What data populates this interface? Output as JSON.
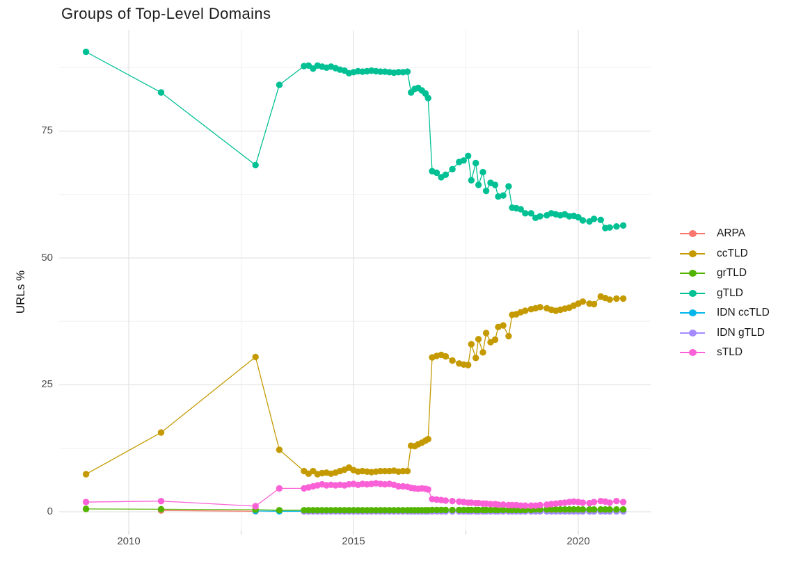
{
  "title": "Groups of Top-Level Domains",
  "chart_data": {
    "type": "scatter",
    "title": "Groups of Top-Level Domains",
    "xlabel": "",
    "ylabel": "URLs %",
    "legend_position": "right",
    "grid": true,
    "xlim": [
      2008.45,
      2021.6
    ],
    "ylim": [
      0,
      95
    ],
    "x_ticks": [
      2010,
      2015,
      2020
    ],
    "x_tick_labels": [
      "2010",
      "2015",
      "2020"
    ],
    "x_minor": [
      2012.5,
      2017.5
    ],
    "y_ticks": [
      0,
      25,
      50,
      75
    ],
    "y_tick_labels": [
      "0",
      "25",
      "50",
      "75"
    ],
    "y_minor": [
      12.5,
      37.5,
      62.5,
      87.5
    ],
    "x": [
      2009.05,
      2010.72,
      2012.82,
      2013.35,
      2013.9,
      2014.0,
      2014.1,
      2014.2,
      2014.3,
      2014.4,
      2014.5,
      2014.6,
      2014.7,
      2014.8,
      2014.9,
      2015.0,
      2015.1,
      2015.2,
      2015.3,
      2015.4,
      2015.5,
      2015.6,
      2015.7,
      2015.8,
      2015.9,
      2016.0,
      2016.1,
      2016.2,
      2016.28,
      2016.36,
      2016.44,
      2016.52,
      2016.6,
      2016.66,
      2016.75,
      2016.85,
      2016.95,
      2017.05,
      2017.2,
      2017.35,
      2017.45,
      2017.55,
      2017.62,
      2017.72,
      2017.78,
      2017.88,
      2017.95,
      2018.05,
      2018.15,
      2018.22,
      2018.33,
      2018.45,
      2018.53,
      2018.62,
      2018.72,
      2018.82,
      2018.95,
      2019.05,
      2019.15,
      2019.3,
      2019.4,
      2019.5,
      2019.6,
      2019.7,
      2019.8,
      2019.9,
      2020.0,
      2020.1,
      2020.25,
      2020.35,
      2020.5,
      2020.6,
      2020.7,
      2020.85,
      2021.0
    ],
    "series": [
      {
        "name": "ARPA",
        "color": "#F8766D",
        "values": [
          null,
          0.25,
          0.1,
          null,
          null,
          null,
          null,
          null,
          null,
          null,
          null,
          null,
          null,
          null,
          null,
          null,
          null,
          null,
          null,
          null,
          null,
          null,
          null,
          null,
          null,
          null,
          null,
          null,
          null,
          null,
          null,
          null,
          null,
          null,
          null,
          null,
          null,
          null,
          null,
          null,
          null,
          null,
          null,
          null,
          null,
          null,
          null,
          null,
          null,
          null,
          null,
          null,
          null,
          null,
          null,
          null,
          null,
          null,
          null,
          null,
          null,
          null,
          null,
          null,
          null,
          null,
          null,
          null,
          null,
          null,
          null,
          null,
          null,
          null,
          null
        ]
      },
      {
        "name": "ccTLD",
        "color": "#C49A00",
        "values": [
          7.4,
          15.6,
          30.5,
          12.2,
          8.0,
          7.5,
          8.0,
          7.4,
          7.6,
          7.7,
          7.5,
          7.7,
          8.0,
          8.3,
          8.7,
          8.2,
          7.9,
          8.0,
          7.9,
          7.8,
          7.9,
          8.0,
          8.0,
          8.0,
          8.1,
          7.9,
          8.0,
          8.0,
          13.0,
          12.9,
          13.3,
          13.6,
          14.0,
          14.3,
          30.4,
          30.7,
          30.9,
          30.6,
          29.8,
          29.2,
          29.0,
          28.9,
          33.0,
          30.3,
          34.0,
          31.4,
          35.2,
          33.4,
          33.9,
          36.4,
          36.7,
          34.6,
          38.8,
          38.9,
          39.3,
          39.6,
          39.9,
          40.1,
          40.3,
          40.1,
          39.8,
          39.6,
          39.8,
          40.0,
          40.2,
          40.6,
          41.0,
          41.4,
          41.0,
          40.9,
          42.4,
          42.1,
          41.8,
          42.0,
          42.0
        ]
      },
      {
        "name": "grTLD",
        "color": "#53B400",
        "values": [
          0.55,
          0.5,
          0.4,
          0.3,
          0.3,
          0.3,
          0.3,
          0.3,
          0.3,
          0.3,
          0.3,
          0.3,
          0.3,
          0.3,
          0.3,
          0.3,
          0.3,
          0.3,
          0.3,
          0.3,
          0.3,
          0.3,
          0.3,
          0.3,
          0.3,
          0.3,
          0.3,
          0.3,
          0.3,
          0.3,
          0.3,
          0.3,
          0.3,
          0.3,
          0.35,
          0.35,
          0.35,
          0.35,
          0.35,
          0.35,
          0.35,
          0.35,
          0.35,
          0.35,
          0.35,
          0.35,
          0.35,
          0.35,
          0.35,
          0.35,
          0.35,
          0.35,
          0.35,
          0.35,
          0.35,
          0.35,
          0.35,
          0.45,
          0.45,
          0.45,
          0.45,
          0.45,
          0.45,
          0.45,
          0.45,
          0.45,
          0.45,
          0.45,
          0.45,
          0.45,
          0.45,
          0.45,
          0.45,
          0.45,
          0.45
        ]
      },
      {
        "name": "gTLD",
        "color": "#00C094",
        "values": [
          90.6,
          82.6,
          68.3,
          84.1,
          87.8,
          87.9,
          87.3,
          87.9,
          87.7,
          87.5,
          87.7,
          87.4,
          87.1,
          86.9,
          86.4,
          86.6,
          86.8,
          86.7,
          86.8,
          86.9,
          86.8,
          86.7,
          86.7,
          86.6,
          86.5,
          86.6,
          86.6,
          86.7,
          82.6,
          83.3,
          83.5,
          83.0,
          82.4,
          81.5,
          67.1,
          66.8,
          65.9,
          66.4,
          67.5,
          68.9,
          69.2,
          70.1,
          65.3,
          68.7,
          64.4,
          66.9,
          63.2,
          64.8,
          64.4,
          62.1,
          62.3,
          64.1,
          59.9,
          59.8,
          59.6,
          58.8,
          58.8,
          57.9,
          58.2,
          58.4,
          58.8,
          58.6,
          58.4,
          58.6,
          58.2,
          58.3,
          58.0,
          57.4,
          57.2,
          57.7,
          57.5,
          55.9,
          56.0,
          56.2,
          56.4
        ]
      },
      {
        "name": "IDN ccTLD",
        "color": "#00B6EB",
        "values": [
          null,
          null,
          0.15,
          0.1,
          0.1,
          0.1,
          0.1,
          0.1,
          0.1,
          0.1,
          0.1,
          0.1,
          0.1,
          0.1,
          0.1,
          0.1,
          0.1,
          0.1,
          0.1,
          0.1,
          0.1,
          0.1,
          0.1,
          0.1,
          0.1,
          0.1,
          0.1,
          0.1,
          0.1,
          0.1,
          0.1,
          0.1,
          0.1,
          0.1,
          0.1,
          0.1,
          0.1,
          0.1,
          0.1,
          0.1,
          0.1,
          0.1,
          0.1,
          0.1,
          0.1,
          0.1,
          0.1,
          0.1,
          0.1,
          0.1,
          0.1,
          0.1,
          0.1,
          0.1,
          0.1,
          0.1,
          0.1,
          0.1,
          0.1,
          0.1,
          0.1,
          0.1,
          0.1,
          0.1,
          0.1,
          0.1,
          0.1,
          0.1,
          0.1,
          0.1,
          0.1,
          0.1,
          0.1,
          0.1,
          0.1
        ]
      },
      {
        "name": "IDN gTLD",
        "color": "#A58AFF",
        "values": [
          null,
          null,
          null,
          null,
          0.05,
          0.05,
          0.05,
          0.05,
          0.05,
          0.05,
          0.05,
          0.05,
          0.05,
          0.05,
          0.05,
          0.05,
          0.05,
          0.05,
          0.05,
          0.05,
          0.05,
          0.05,
          0.05,
          0.05,
          0.05,
          0.05,
          0.05,
          0.05,
          0.05,
          0.05,
          0.05,
          0.05,
          0.05,
          0.05,
          0.05,
          0.05,
          0.05,
          0.05,
          0.05,
          0.05,
          0.05,
          0.05,
          0.05,
          0.05,
          0.05,
          0.05,
          0.05,
          0.05,
          0.05,
          0.05,
          0.05,
          0.05,
          0.05,
          0.05,
          0.05,
          0.05,
          0.05,
          0.05,
          0.05,
          0.05,
          0.05,
          0.05,
          0.05,
          0.05,
          0.05,
          0.05,
          0.05,
          0.05,
          0.05,
          0.05,
          0.05,
          0.05,
          0.05,
          0.05,
          0.05
        ]
      },
      {
        "name": "sTLD",
        "color": "#FB61D7",
        "values": [
          1.9,
          2.1,
          1.1,
          4.6,
          4.6,
          4.8,
          5.0,
          5.2,
          5.4,
          5.2,
          5.3,
          5.2,
          5.3,
          5.2,
          5.4,
          5.5,
          5.3,
          5.5,
          5.4,
          5.5,
          5.6,
          5.5,
          5.4,
          5.5,
          5.3,
          5.0,
          5.0,
          4.9,
          4.7,
          4.6,
          4.5,
          4.6,
          4.5,
          4.4,
          2.5,
          2.4,
          2.3,
          2.2,
          2.1,
          2.0,
          1.9,
          1.8,
          1.8,
          1.7,
          1.7,
          1.6,
          1.6,
          1.5,
          1.5,
          1.4,
          1.4,
          1.3,
          1.3,
          1.3,
          1.2,
          1.2,
          1.2,
          1.2,
          1.3,
          1.4,
          1.5,
          1.6,
          1.7,
          1.8,
          1.9,
          2.0,
          1.9,
          1.8,
          1.7,
          1.9,
          2.1,
          2.0,
          1.8,
          2.1,
          1.9
        ]
      }
    ]
  }
}
